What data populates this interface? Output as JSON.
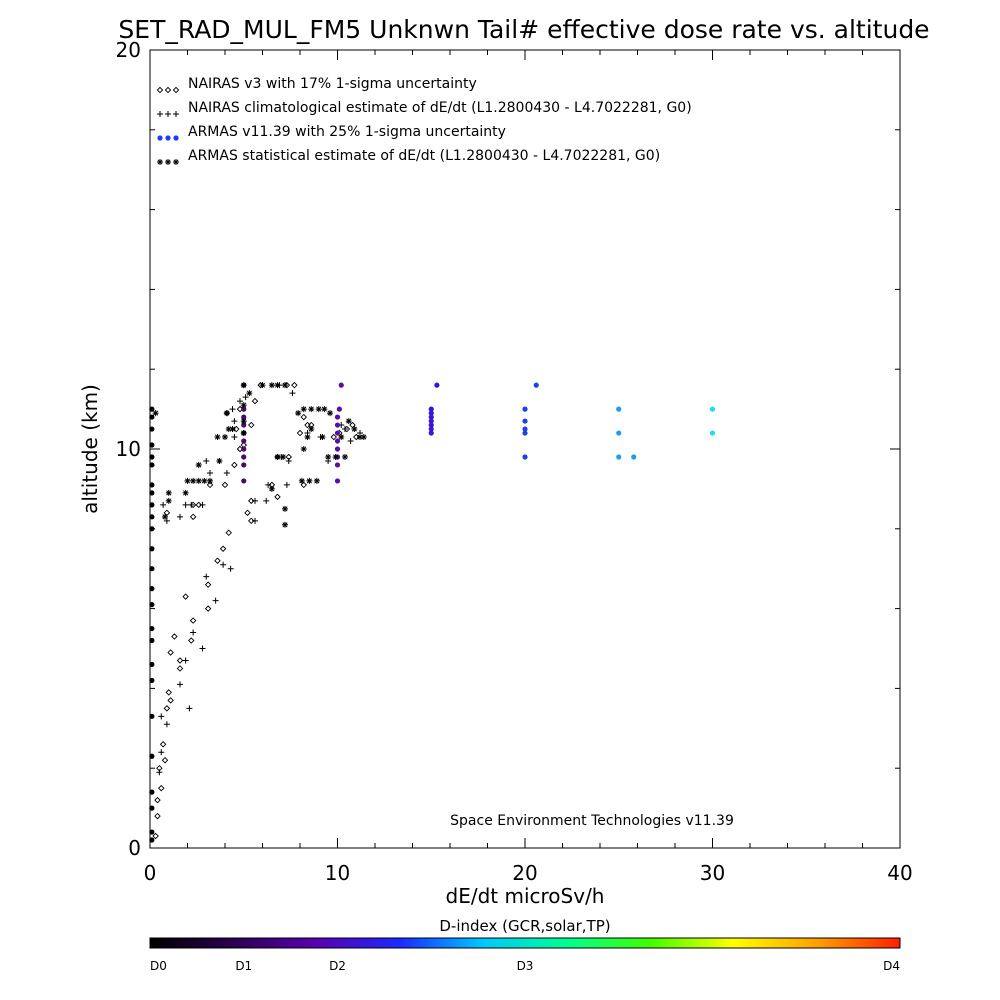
{
  "chart_data": {
    "type": "scatter",
    "title": "SET_RAD_MUL_FM5 Unknwn Tail#  effective dose rate vs. altitude",
    "xlabel": "dE/dt microSv/h",
    "ylabel": "altitude (km)",
    "xlim": [
      0,
      40
    ],
    "ylim": [
      0,
      20
    ],
    "x_ticks": [
      "0",
      "10",
      "20",
      "30",
      "40"
    ],
    "y_ticks": [
      "0",
      "10",
      "20"
    ],
    "credit": "Space Environment Technologies v11.39",
    "legend_placement": "top-left",
    "series": [
      {
        "name": "NAIRAS v3 with 17% 1-sigma uncertainty",
        "marker": "diamond",
        "color": "#000000",
        "points": [
          [
            0.3,
            0.3
          ],
          [
            0.4,
            0.8
          ],
          [
            0.4,
            1.2
          ],
          [
            0.6,
            1.5
          ],
          [
            0.5,
            2.0
          ],
          [
            0.8,
            2.2
          ],
          [
            0.7,
            2.6
          ],
          [
            0.9,
            3.5
          ],
          [
            1.1,
            3.7
          ],
          [
            1.0,
            3.9
          ],
          [
            1.1,
            4.9
          ],
          [
            1.6,
            4.5
          ],
          [
            1.6,
            4.7
          ],
          [
            1.3,
            5.3
          ],
          [
            2.2,
            5.2
          ],
          [
            1.9,
            6.3
          ],
          [
            2.3,
            5.7
          ],
          [
            3.1,
            6.0
          ],
          [
            3.1,
            6.6
          ],
          [
            3.6,
            7.2
          ],
          [
            3.9,
            7.5
          ],
          [
            4.2,
            7.9
          ],
          [
            0.9,
            8.4
          ],
          [
            2.3,
            8.3
          ],
          [
            2.3,
            8.6
          ],
          [
            2.6,
            8.6
          ],
          [
            5.2,
            8.4
          ],
          [
            5.4,
            8.2
          ],
          [
            5.4,
            8.7
          ],
          [
            3.2,
            9.1
          ],
          [
            4.0,
            9.1
          ],
          [
            6.5,
            9.1
          ],
          [
            6.8,
            8.8
          ],
          [
            4.5,
            9.6
          ],
          [
            4.8,
            10.0
          ],
          [
            5.0,
            10.1
          ],
          [
            4.6,
            10.5
          ],
          [
            5.4,
            10.6
          ],
          [
            4.8,
            11.0
          ],
          [
            5.6,
            11.2
          ],
          [
            4.1,
            10.9
          ],
          [
            5.9,
            11.6
          ],
          [
            7.3,
            11.6
          ],
          [
            7.7,
            11.6
          ],
          [
            8.2,
            10.8
          ],
          [
            8.4,
            10.6
          ],
          [
            8.6,
            10.6
          ],
          [
            8.0,
            10.4
          ],
          [
            9.8,
            10.3
          ],
          [
            7.4,
            9.8
          ],
          [
            8.2,
            9.1
          ],
          [
            6.8,
            9.8
          ],
          [
            10.1,
            10.4
          ],
          [
            10.5,
            10.5
          ],
          [
            10.8,
            10.6
          ],
          [
            11.0,
            10.3
          ]
        ]
      },
      {
        "name": "NAIRAS climatological estimate of dE/dt (L1.2800430 - L4.7022281, G0)",
        "marker": "plus",
        "color": "#000000",
        "points": [
          [
            0.5,
            1.9
          ],
          [
            0.6,
            2.4
          ],
          [
            0.6,
            3.3
          ],
          [
            0.9,
            3.1
          ],
          [
            1.6,
            4.1
          ],
          [
            1.9,
            4.7
          ],
          [
            2.1,
            3.5
          ],
          [
            2.3,
            5.4
          ],
          [
            2.8,
            5.0
          ],
          [
            3.0,
            6.8
          ],
          [
            3.5,
            6.2
          ],
          [
            3.9,
            7.1
          ],
          [
            4.3,
            7.0
          ],
          [
            0.9,
            8.2
          ],
          [
            0.7,
            8.6
          ],
          [
            1.6,
            8.3
          ],
          [
            1.9,
            8.6
          ],
          [
            2.2,
            8.6
          ],
          [
            2.8,
            8.6
          ],
          [
            3.2,
            9.4
          ],
          [
            4.1,
            9.4
          ],
          [
            5.6,
            8.2
          ],
          [
            5.6,
            8.7
          ],
          [
            6.2,
            8.7
          ],
          [
            6.3,
            9.1
          ],
          [
            7.3,
            9.1
          ],
          [
            3.0,
            9.7
          ],
          [
            3.7,
            9.7
          ],
          [
            4.5,
            10.3
          ],
          [
            4.5,
            10.7
          ],
          [
            4.4,
            11.0
          ],
          [
            4.8,
            11.2
          ],
          [
            5.1,
            11.3
          ],
          [
            7.0,
            9.8
          ],
          [
            7.4,
            9.7
          ],
          [
            7.6,
            11.4
          ],
          [
            6.9,
            11.6
          ],
          [
            8.4,
            10.4
          ],
          [
            9.1,
            10.3
          ],
          [
            9.5,
            9.7
          ],
          [
            10.4,
            10.5
          ],
          [
            10.2,
            10.6
          ],
          [
            10.7,
            10.2
          ],
          [
            11.2,
            10.4
          ]
        ]
      },
      {
        "name": "ARMAS v11.39 with 25% 1-sigma uncertainty",
        "marker": "dot",
        "color": "#1a3aff",
        "points": [
          [
            0.1,
            0.2
          ],
          [
            0.1,
            0.4
          ],
          [
            0.1,
            1.0
          ],
          [
            0.1,
            1.4
          ],
          [
            0.1,
            2.3
          ],
          [
            0.1,
            3.3
          ],
          [
            0.1,
            4.2
          ],
          [
            0.1,
            4.6
          ],
          [
            0.1,
            5.2
          ],
          [
            0.1,
            5.5
          ],
          [
            0.1,
            6.1
          ],
          [
            0.1,
            6.5
          ],
          [
            0.1,
            7.0
          ],
          [
            0.1,
            7.5
          ],
          [
            0.1,
            8.0
          ],
          [
            0.1,
            8.3
          ],
          [
            0.1,
            8.6
          ],
          [
            0.1,
            8.9
          ],
          [
            0.1,
            9.1
          ],
          [
            0.1,
            9.6
          ],
          [
            0.1,
            9.8
          ],
          [
            0.1,
            10.1
          ],
          [
            0.1,
            10.5
          ],
          [
            0.1,
            10.8
          ],
          [
            0.1,
            11.0
          ],
          [
            5.0,
            9.2
          ],
          [
            5.0,
            9.6
          ],
          [
            5.0,
            9.8
          ],
          [
            5.0,
            10.0
          ],
          [
            5.0,
            10.2
          ],
          [
            5.0,
            10.4
          ],
          [
            5.0,
            10.6
          ],
          [
            5.0,
            10.8
          ],
          [
            5.0,
            11.0
          ],
          [
            5.0,
            11.6
          ],
          [
            10.0,
            9.2
          ],
          [
            10.0,
            9.6
          ],
          [
            10.0,
            9.8
          ],
          [
            10.0,
            10.0
          ],
          [
            10.0,
            10.2
          ],
          [
            10.0,
            10.4
          ],
          [
            10.0,
            10.6
          ],
          [
            10.0,
            10.8
          ],
          [
            10.1,
            11.0
          ],
          [
            10.2,
            11.6
          ],
          [
            15.0,
            10.4
          ],
          [
            15.0,
            10.5
          ],
          [
            15.0,
            10.6
          ],
          [
            15.0,
            10.7
          ],
          [
            15.0,
            10.8
          ],
          [
            15.0,
            10.9
          ],
          [
            15.0,
            11.0
          ],
          [
            15.3,
            11.6
          ],
          [
            20.0,
            9.8
          ],
          [
            20.0,
            10.4
          ],
          [
            20.0,
            10.5
          ],
          [
            20.0,
            10.7
          ],
          [
            20.0,
            11.0
          ],
          [
            20.6,
            11.6
          ],
          [
            25.0,
            9.8
          ],
          [
            25.0,
            10.4
          ],
          [
            25.0,
            11.0
          ],
          [
            25.8,
            9.8
          ],
          [
            30.0,
            10.4
          ],
          [
            30.0,
            11.0
          ]
        ],
        "colors": [
          "#000000",
          "#000000",
          "#000000",
          "#000000",
          "#000000",
          "#000000",
          "#000000",
          "#000000",
          "#000000",
          "#000000",
          "#000000",
          "#000000",
          "#000000",
          "#000000",
          "#000000",
          "#000000",
          "#000000",
          "#000000",
          "#000000",
          "#000000",
          "#000000",
          "#000000",
          "#000000",
          "#000000",
          "#000000",
          "#4a0a6a",
          "#4a0a6a",
          "#4a0a6a",
          "#4a0a6a",
          "#4a0a6a",
          "#4a0a6a",
          "#4a0a6a",
          "#4a0a6a",
          "#4a0a6a",
          "#4a0a6a",
          "#5a0fa0",
          "#5a0fa0",
          "#5a0fa0",
          "#5a0fa0",
          "#5a0fa0",
          "#5a0fa0",
          "#5a0fa0",
          "#5a0fa0",
          "#5a0fa0",
          "#5a0fa0",
          "#3a14d8",
          "#3a14d8",
          "#3a14d8",
          "#3a14d8",
          "#3a14d8",
          "#3a14d8",
          "#3a14d8",
          "#3a14d8",
          "#1e40e8",
          "#1e40e8",
          "#1e40e8",
          "#1e40e8",
          "#1e40e8",
          "#1e40e8",
          "#1e9cf0",
          "#1e9cf0",
          "#1e9cf0",
          "#1e9cf0",
          "#18e0f0",
          "#18e0f0"
        ]
      },
      {
        "name": "ARMAS statistical estimate of dE/dt (L1.2800430 - L4.7022281, G0)",
        "marker": "asterisk",
        "color": "#000000",
        "points": [
          [
            0.8,
            8.3
          ],
          [
            1.0,
            8.7
          ],
          [
            1.0,
            8.9
          ],
          [
            1.9,
            8.9
          ],
          [
            2.0,
            9.2
          ],
          [
            2.3,
            9.2
          ],
          [
            2.6,
            9.2
          ],
          [
            2.9,
            9.2
          ],
          [
            3.2,
            9.2
          ],
          [
            2.6,
            9.6
          ],
          [
            3.7,
            9.7
          ],
          [
            3.6,
            10.3
          ],
          [
            4.0,
            10.3
          ],
          [
            4.2,
            10.5
          ],
          [
            4.4,
            10.5
          ],
          [
            4.1,
            10.9
          ],
          [
            5.0,
            10.4
          ],
          [
            5.0,
            10.7
          ],
          [
            5.0,
            11.1
          ],
          [
            5.3,
            11.4
          ],
          [
            5.0,
            11.6
          ],
          [
            6.0,
            11.6
          ],
          [
            6.5,
            11.6
          ],
          [
            6.8,
            11.6
          ],
          [
            7.2,
            11.6
          ],
          [
            6.8,
            9.8
          ],
          [
            7.1,
            9.8
          ],
          [
            6.5,
            9.0
          ],
          [
            7.2,
            8.5
          ],
          [
            8.1,
            9.2
          ],
          [
            8.5,
            9.2
          ],
          [
            8.9,
            9.2
          ],
          [
            8.2,
            10.0
          ],
          [
            8.4,
            10.3
          ],
          [
            8.6,
            10.5
          ],
          [
            7.9,
            10.9
          ],
          [
            8.2,
            11.0
          ],
          [
            8.6,
            11.0
          ],
          [
            9.0,
            11.0
          ],
          [
            9.3,
            11.0
          ],
          [
            9.6,
            10.9
          ],
          [
            9.2,
            10.3
          ],
          [
            9.5,
            9.8
          ],
          [
            9.9,
            9.8
          ],
          [
            10.4,
            9.8
          ],
          [
            10.2,
            10.3
          ],
          [
            10.6,
            10.7
          ],
          [
            10.9,
            10.5
          ],
          [
            11.2,
            10.3
          ],
          [
            11.4,
            10.3
          ],
          [
            7.2,
            8.1
          ],
          [
            0.3,
            10.9
          ]
        ]
      }
    ],
    "colorbar": {
      "title": "D-index (GCR,solar,TP)",
      "stops": [
        "#000000",
        "#2a0050",
        "#5a00b0",
        "#1a2aff",
        "#00c8ff",
        "#00ff90",
        "#40ff00",
        "#ffff00",
        "#ffa000",
        "#ff2000"
      ],
      "labels": [
        {
          "text": "D0",
          "value": 0
        },
        {
          "text": "D1",
          "value": 0.125
        },
        {
          "text": "D2",
          "value": 0.25
        },
        {
          "text": "D3",
          "value": 0.5
        },
        {
          "text": "D4",
          "value": 1.0
        }
      ]
    }
  }
}
